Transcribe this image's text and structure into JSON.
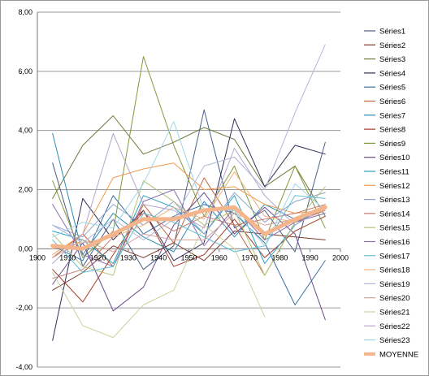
{
  "chart_data": {
    "type": "line",
    "title": "",
    "xlabel": "",
    "ylabel": "",
    "xlim": [
      1900,
      2000
    ],
    "ylim": [
      -4,
      8
    ],
    "x_ticks": [
      1900,
      1910,
      1920,
      1930,
      1940,
      1950,
      1960,
      1970,
      1980,
      1990,
      2000
    ],
    "x_tick_labels": [
      "1900",
      "1910",
      "1920",
      "1930",
      "1940",
      "1950",
      "1960",
      "1970",
      "1980",
      "1990",
      "2000"
    ],
    "y_ticks": [
      -4,
      -2,
      0,
      2,
      4,
      6,
      8
    ],
    "y_tick_labels": [
      "-4,00",
      "-2,00",
      "0,00",
      "2,00",
      "4,00",
      "6,00",
      "8,00"
    ],
    "gridlines": "horizontal",
    "legend_position": "right",
    "series": [
      {
        "name": "Séries1",
        "color": "#4b5f8a",
        "x": [
          1905,
          1915,
          1925,
          1935,
          1945,
          1955,
          1965,
          1975,
          1985,
          1995
        ],
        "values": [
          2.9,
          -0.6,
          1.0,
          -0.7,
          0.1,
          4.7,
          0.7,
          1.3,
          -0.1,
          3.6
        ]
      },
      {
        "name": "Séries2",
        "color": "#7a3b2e",
        "x": [
          1905,
          1915,
          1925,
          1935,
          1945,
          1955,
          1965,
          1975,
          1985,
          1995
        ],
        "values": [
          -1.4,
          -0.8,
          0.1,
          -0.3,
          0.2,
          -0.4,
          0.6,
          0.5,
          0.4,
          0.3
        ]
      },
      {
        "name": "Séries3",
        "color": "#6d7a3a",
        "x": [
          1905,
          1915,
          1925,
          1935,
          1945,
          1955,
          1965,
          1975,
          1985,
          1995
        ],
        "values": [
          1.7,
          3.5,
          4.5,
          3.2,
          3.6,
          4.1,
          3.7,
          2.1,
          2.8,
          1.1
        ]
      },
      {
        "name": "Séries4",
        "color": "#2f2f5a",
        "x": [
          1905,
          1915,
          1925,
          1935,
          1945,
          1955,
          1965,
          1975,
          1985,
          1995
        ],
        "values": [
          -3.1,
          1.7,
          0.3,
          1.3,
          -0.4,
          0.2,
          4.4,
          2.1,
          3.5,
          3.2
        ]
      },
      {
        "name": "Séries5",
        "color": "#3a6ea5",
        "x": [
          1905,
          1915,
          1925,
          1935,
          1945,
          1955,
          1965,
          1975,
          1985,
          1995
        ],
        "values": [
          0.1,
          -0.4,
          1.8,
          0.5,
          1.1,
          1.5,
          1.2,
          0.2,
          -1.9,
          -0.4
        ]
      },
      {
        "name": "Séries6",
        "color": "#c0653a",
        "x": [
          1905,
          1915,
          1925,
          1935,
          1945,
          1955,
          1965,
          1975,
          1985,
          1995
        ],
        "values": [
          -0.3,
          0.5,
          -0.6,
          1.5,
          0.2,
          2.4,
          0.8,
          -0.9,
          0.9,
          1.3
        ]
      },
      {
        "name": "Séries7",
        "color": "#2e8bb5",
        "x": [
          1905,
          1915,
          1925,
          1935,
          1945,
          1955,
          1965,
          1975,
          1985,
          1995
        ],
        "values": [
          3.9,
          -0.2,
          1.2,
          0.4,
          -0.1,
          1.6,
          0.4,
          1.5,
          1.0,
          1.4
        ]
      },
      {
        "name": "Séries8",
        "color": "#a33c2a",
        "x": [
          1905,
          1915,
          1925,
          1935,
          1945,
          1955,
          1965,
          1975,
          1985,
          1995
        ],
        "values": [
          -0.7,
          -1.8,
          -0.2,
          1.3,
          -0.6,
          -0.2,
          1.0,
          -0.3,
          0.6,
          1.1
        ]
      },
      {
        "name": "Séries9",
        "color": "#7f9a3a",
        "x": [
          1905,
          1915,
          1925,
          1935,
          1945,
          1955,
          1965,
          1975,
          1985,
          1995
        ],
        "values": [
          2.3,
          -0.3,
          0.6,
          6.5,
          3.5,
          1.1,
          2.8,
          0.3,
          2.8,
          0.7
        ]
      },
      {
        "name": "Séries10",
        "color": "#6b4a8e",
        "x": [
          1905,
          1915,
          1925,
          1935,
          1945,
          1955,
          1965,
          1975,
          1985,
          1995
        ],
        "values": [
          -1.2,
          0.2,
          -2.1,
          -1.3,
          0.8,
          1.9,
          0.5,
          1.4,
          0.5,
          -2.4
        ]
      },
      {
        "name": "Séries11",
        "color": "#2aa0c0",
        "x": [
          1905,
          1915,
          1925,
          1935,
          1945,
          1955,
          1965,
          1975,
          1985,
          1995
        ],
        "values": [
          0.6,
          0.3,
          -0.5,
          1.8,
          1.4,
          0.5,
          1.8,
          -0.5,
          0.8,
          1.5
        ]
      },
      {
        "name": "Séries12",
        "color": "#f29a4e",
        "x": [
          1905,
          1915,
          1925,
          1935,
          1945,
          1955,
          1965,
          1975,
          1985,
          1995
        ],
        "values": [
          -0.2,
          0.5,
          2.4,
          2.7,
          2.9,
          2.0,
          2.1,
          1.5,
          1.2,
          1.3
        ]
      },
      {
        "name": "Séries13",
        "color": "#8fa3c8",
        "x": [
          1905,
          1915,
          1925,
          1935,
          1945,
          1955,
          1965,
          1975,
          1985,
          1995
        ],
        "values": [
          0.8,
          0.4,
          1.5,
          0.8,
          1.6,
          0.5,
          1.9,
          0.9,
          1.6,
          1.9
        ]
      },
      {
        "name": "Séries14",
        "color": "#c9786e",
        "x": [
          1905,
          1915,
          1925,
          1935,
          1945,
          1955,
          1965,
          1975,
          1985,
          1995
        ],
        "values": [
          -1.0,
          -0.7,
          0.4,
          1.2,
          0.6,
          1.1,
          0.8,
          1.0,
          1.2,
          1.5
        ]
      },
      {
        "name": "Séries15",
        "color": "#b3c47a",
        "x": [
          1905,
          1915,
          1925,
          1935,
          1945,
          1955,
          1965,
          1975,
          1985,
          1995
        ],
        "values": [
          0.5,
          -0.6,
          -0.9,
          2.3,
          1.6,
          0.8,
          1.3,
          -0.9,
          0.9,
          2.1
        ]
      },
      {
        "name": "Séries16",
        "color": "#8d6fb0",
        "x": [
          1905,
          1915,
          1925,
          1935,
          1945,
          1955,
          1965,
          1975,
          1985,
          1995
        ],
        "values": [
          1.5,
          -0.2,
          -0.6,
          1.6,
          2.0,
          0.1,
          1.4,
          0.3,
          0.9,
          1.2
        ]
      },
      {
        "name": "Séries17",
        "color": "#5fc0d6",
        "x": [
          1905,
          1915,
          1925,
          1935,
          1945,
          1955,
          1965,
          1975,
          1985,
          1995
        ],
        "values": [
          0.3,
          -0.8,
          -0.6,
          1.2,
          0.9,
          0.4,
          -0.1,
          0.1,
          1.8,
          1.7
        ]
      },
      {
        "name": "Séries18",
        "color": "#f2b07a",
        "x": [
          1905,
          1915,
          1925,
          1935,
          1945,
          1955,
          1965,
          1975,
          1985,
          1995
        ],
        "values": [
          0.0,
          0.2,
          0.4,
          0.8,
          1.4,
          1.0,
          2.6,
          1.1,
          0.9,
          1.5
        ]
      },
      {
        "name": "Séries19",
        "color": "#b0b8d8",
        "x": [
          1905,
          1915,
          1925,
          1935,
          1945,
          1955,
          1965,
          1975,
          1985,
          1995
        ],
        "values": [
          0.8,
          0.2,
          1.0,
          0.3,
          1.0,
          2.8,
          3.1,
          2.0,
          4.6,
          6.9
        ]
      },
      {
        "name": "Séries20",
        "color": "#d4a39a",
        "x": [
          1905,
          1915,
          1925,
          1935,
          1945,
          1955,
          1965,
          1975,
          1985,
          1995
        ],
        "values": [
          -0.3,
          0.3,
          -0.1,
          0.5,
          0.3,
          0.3,
          1.2,
          0.8,
          1.0,
          1.3
        ]
      },
      {
        "name": "Séries21",
        "color": "#c9d49e",
        "x": [
          1905,
          1915,
          1925,
          1935,
          1945,
          1955,
          1965,
          1975,
          1985,
          1995
        ],
        "values": [
          -0.8,
          -2.6,
          -3.0,
          -1.9,
          -1.4,
          0.8,
          0.0,
          -2.3,
          null,
          null
        ]
      },
      {
        "name": "Séries22",
        "color": "#b6a3cc",
        "x": [
          1905,
          1915,
          1925,
          1935,
          1945,
          1955,
          1965,
          1975,
          1985,
          1995
        ],
        "values": [
          -0.5,
          0.5,
          3.9,
          1.5,
          1.3,
          0.7,
          3.4,
          1.8,
          0.8,
          1.4
        ]
      },
      {
        "name": "Séries23",
        "color": "#9fd6e4",
        "x": [
          1905,
          1915,
          1925,
          1935,
          1945,
          1955,
          1965,
          1975,
          1985,
          1995
        ],
        "values": [
          0.4,
          0.9,
          0.7,
          2.2,
          4.3,
          1.3,
          1.3,
          0.1,
          2.2,
          1.3
        ]
      },
      {
        "name": "MOYENNE",
        "color": "#f5b58c",
        "x": [
          1905,
          1915,
          1925,
          1935,
          1945,
          1955,
          1965,
          1975,
          1985,
          1995
        ],
        "values": [
          0.1,
          0.0,
          0.5,
          1.0,
          1.0,
          1.3,
          1.4,
          0.5,
          1.0,
          1.4
        ]
      }
    ]
  }
}
